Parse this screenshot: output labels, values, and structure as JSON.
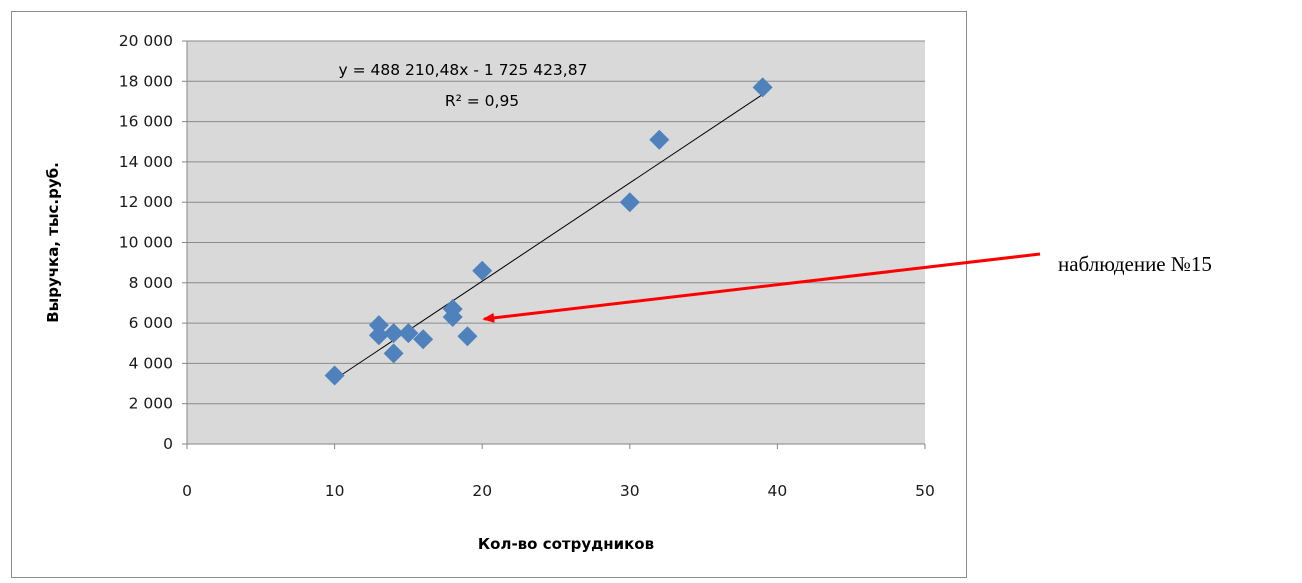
{
  "chart_data": {
    "type": "scatter",
    "title": "",
    "xlabel": "Кол-во сотрудников",
    "ylabel": "Выручка, тыс.руб.",
    "xlim": [
      0,
      50
    ],
    "ylim": [
      0,
      20000
    ],
    "x_ticks": [
      0,
      10,
      20,
      30,
      40,
      50
    ],
    "y_ticks": [
      0,
      2000,
      4000,
      6000,
      8000,
      10000,
      12000,
      14000,
      16000,
      18000,
      20000
    ],
    "x_tick_labels": [
      "0",
      "10",
      "20",
      "30",
      "40",
      "50"
    ],
    "y_tick_labels": [
      "0",
      "2 000",
      "4 000",
      "6 000",
      "8 000",
      "10 000",
      "12 000",
      "14 000",
      "16 000",
      "18 000",
      "20 000"
    ],
    "grid": true,
    "marker_color": "#4f81bd",
    "plot_background": "#d9d9d9",
    "points": [
      {
        "x": 10,
        "y": 3400
      },
      {
        "x": 13,
        "y": 5900
      },
      {
        "x": 13,
        "y": 5400
      },
      {
        "x": 14,
        "y": 5500
      },
      {
        "x": 14,
        "y": 4500
      },
      {
        "x": 15,
        "y": 5500
      },
      {
        "x": 16,
        "y": 5200
      },
      {
        "x": 18,
        "y": 6700
      },
      {
        "x": 18,
        "y": 6300
      },
      {
        "x": 19,
        "y": 5350
      },
      {
        "x": 20,
        "y": 8600
      },
      {
        "x": 30,
        "y": 12000
      },
      {
        "x": 32,
        "y": 15100
      },
      {
        "x": 39,
        "y": 17700
      }
    ],
    "trendline": {
      "type": "linear",
      "x_range": [
        10,
        39
      ],
      "y_range": [
        3200,
        17350
      ],
      "equation_label": "y = 488 210,48x - 1 725 423,87",
      "r2_label": "R² = 0,95"
    },
    "annotations": [
      {
        "text": "наблюдение №15",
        "arrow_color": "#ff0000",
        "target": {
          "x": 20,
          "y": 6400
        }
      }
    ]
  }
}
